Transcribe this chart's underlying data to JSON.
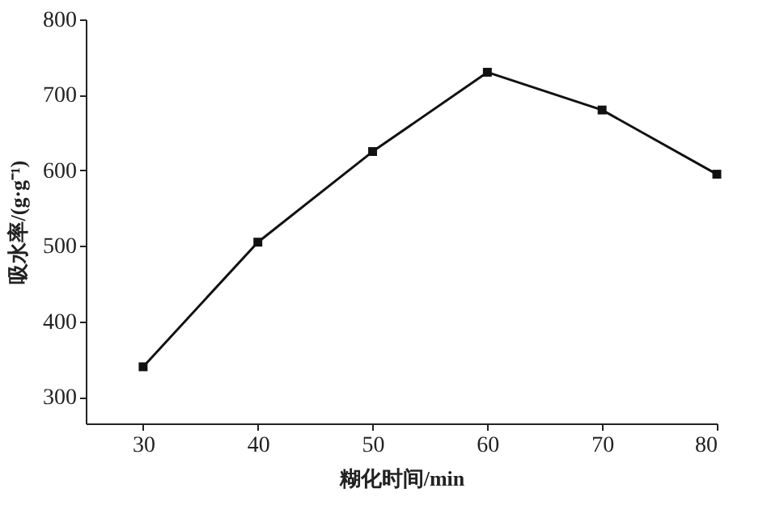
{
  "chart_data": {
    "type": "line",
    "xlabel": "糊化时间/min",
    "ylabel": "吸水率/(g·g⁻¹)",
    "x": [
      30,
      40,
      50,
      60,
      70,
      80
    ],
    "series": [
      {
        "color": "#111111",
        "values": [
          340,
          505,
          625,
          730,
          680,
          595
        ]
      }
    ],
    "xlim": [
      25,
      80
    ],
    "xticks": [
      30,
      40,
      50,
      60,
      70,
      80
    ],
    "ylim": [
      265,
      800
    ],
    "yticks": [
      300,
      400,
      500,
      600,
      700,
      800
    ],
    "marker": "square",
    "line_style": "solid",
    "grid": false,
    "legend": false
  }
}
